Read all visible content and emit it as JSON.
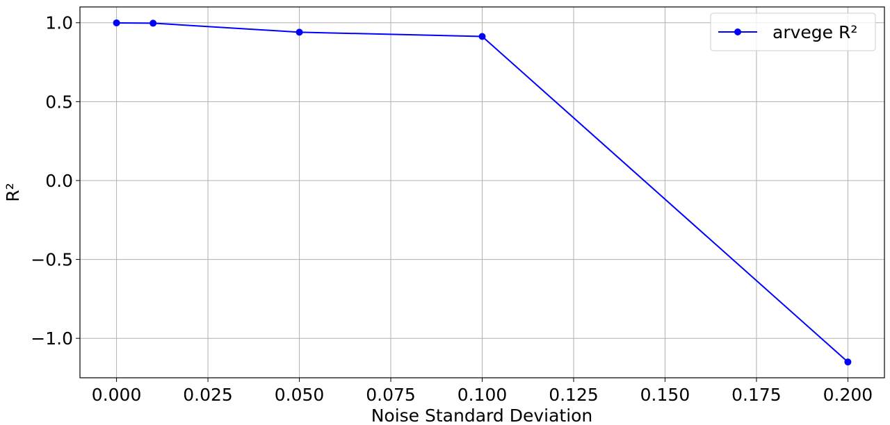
{
  "chart_data": {
    "type": "line",
    "xlabel": "Noise Standard Deviation",
    "ylabel": "R²",
    "xlim": [
      -0.01,
      0.21
    ],
    "ylim": [
      -1.25,
      1.1
    ],
    "xticks": [
      0.0,
      0.025,
      0.05,
      0.075,
      0.1,
      0.125,
      0.15,
      0.175,
      0.2
    ],
    "xtick_labels": [
      "0.000",
      "0.025",
      "0.050",
      "0.075",
      "0.100",
      "0.125",
      "0.150",
      "0.175",
      "0.200"
    ],
    "yticks": [
      1.0,
      0.5,
      0.0,
      -0.5,
      -1.0
    ],
    "ytick_labels": [
      "1.0",
      "0.5",
      "0.0",
      "−0.5",
      "−1.0"
    ],
    "grid": true,
    "legend_position": "top-right",
    "series": [
      {
        "name": "arvege R²",
        "color": "#0000ff",
        "marker": "circle",
        "x": [
          0.0,
          0.01,
          0.05,
          0.1,
          0.2
        ],
        "y": [
          0.999,
          0.997,
          0.94,
          0.913,
          -1.15
        ]
      }
    ]
  }
}
